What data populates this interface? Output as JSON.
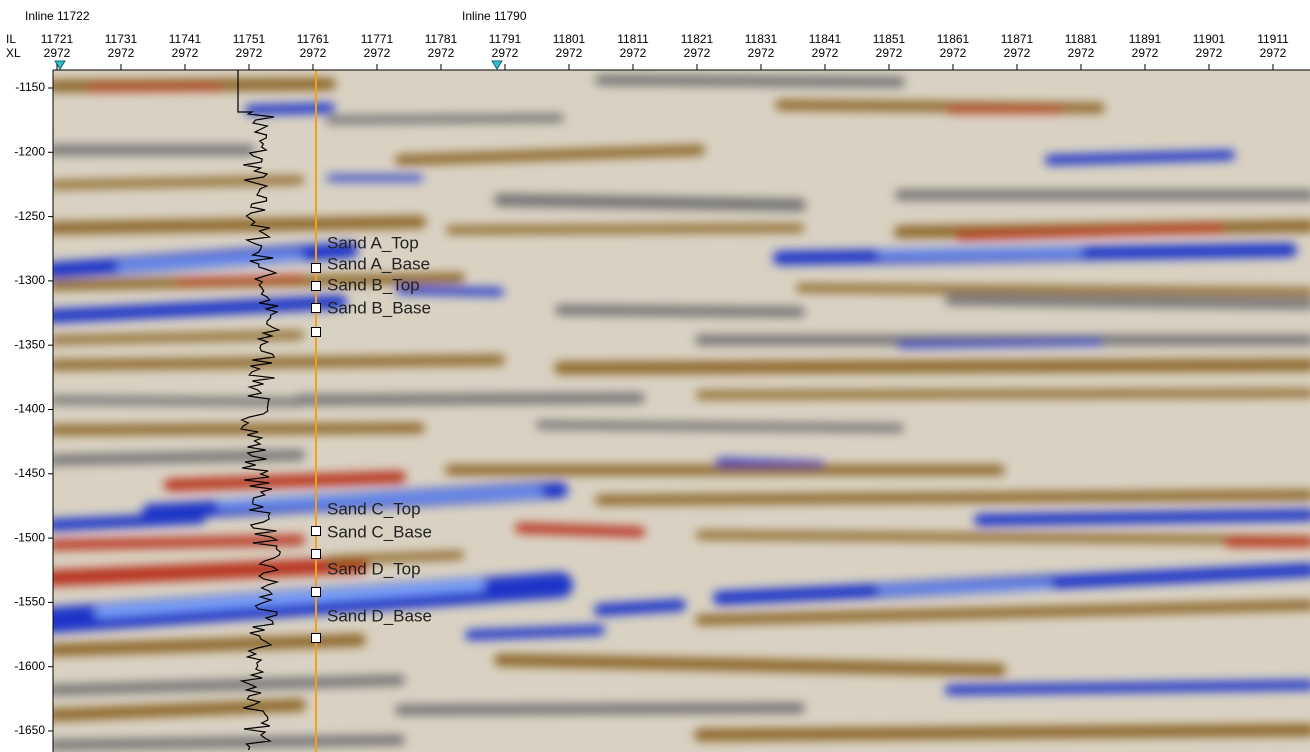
{
  "header": {
    "inline_markers": [
      "Inline 11722",
      "Inline 11790"
    ]
  },
  "axis": {
    "il_label": "IL",
    "xl_label": "XL",
    "columns": [
      {
        "il": "11721",
        "xl": "2972"
      },
      {
        "il": "11731",
        "xl": "2972"
      },
      {
        "il": "11741",
        "xl": "2972"
      },
      {
        "il": "11751",
        "xl": "2972"
      },
      {
        "il": "11761",
        "xl": "2972"
      },
      {
        "il": "11771",
        "xl": "2972"
      },
      {
        "il": "11781",
        "xl": "2972"
      },
      {
        "il": "11791",
        "xl": "2972"
      },
      {
        "il": "11801",
        "xl": "2972"
      },
      {
        "il": "11811",
        "xl": "2972"
      },
      {
        "il": "11821",
        "xl": "2972"
      },
      {
        "il": "11831",
        "xl": "2972"
      },
      {
        "il": "11841",
        "xl": "2972"
      },
      {
        "il": "11851",
        "xl": "2972"
      },
      {
        "il": "11861",
        "xl": "2972"
      },
      {
        "il": "11871",
        "xl": "2972"
      },
      {
        "il": "11881",
        "xl": "2972"
      },
      {
        "il": "11891",
        "xl": "2972"
      },
      {
        "il": "11901",
        "xl": "2972"
      },
      {
        "il": "11911",
        "xl": "2972"
      }
    ],
    "rows": [
      "-1150",
      "-1200",
      "-1250",
      "-1300",
      "-1350",
      "-1400",
      "-1450",
      "-1500",
      "-1550",
      "-1600",
      "-1650"
    ]
  },
  "horizons": [
    "Sand A_Top",
    "Sand A_Base",
    "Sand B_Top",
    "Sand B_Base",
    "Sand C_Top",
    "Sand C_Base",
    "Sand D_Top",
    "Sand D_Base"
  ]
}
